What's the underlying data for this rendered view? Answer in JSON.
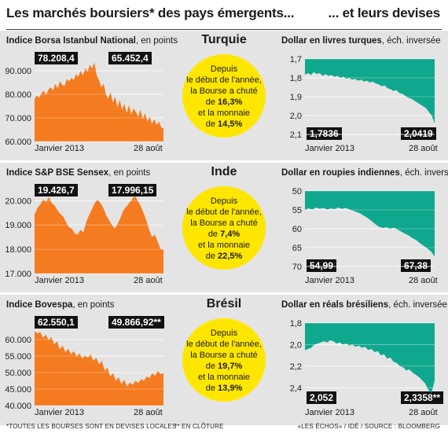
{
  "header": {
    "left_title": "Les marchés boursiers* des pays émergents...",
    "right_title": "... et leurs devises"
  },
  "footer": {
    "note_left": "*TOUTES LES BOURSES SONT EN DEVISES LOCALES",
    "note_mid": "** EN CLÔTURE",
    "source": "«LES ÉCHOS» / IDÉ / SOURCE : BLOOMBERG"
  },
  "colors": {
    "stock": "#f47b20",
    "currency": "#0fa88f",
    "circle": "#ffe600",
    "panel": "#e4e4e4"
  },
  "rows": [
    {
      "country": "Turquie",
      "circle": {
        "l1": "Depuis",
        "l2": "le début de l'année,",
        "l3": "la Bourse a chuté",
        "l4_pre": "de ",
        "stock_pct": "16,3%",
        "l5": "et la monnaie",
        "l6_pre": "de ",
        "fx_pct": "14,5%"
      },
      "stock_title": "Indice Borsa Istanbul National",
      "stock_sub": ", en points",
      "fx_title": "Dollar en livres turques",
      "fx_sub": ", éch. inversée",
      "x_start": "Janvier 2013",
      "x_end": "28 août",
      "stock_start_label": "78.208,4",
      "stock_end_label": "65.452,4",
      "fx_start_label": "1,7836",
      "fx_end_label": "2,0419"
    },
    {
      "country": "Inde",
      "circle": {
        "l1": "Depuis",
        "l2": "le début de l'année,",
        "l3": "la Bourse a chuté",
        "l4_pre": "de ",
        "stock_pct": "7,4%",
        "l5": "et la monnaie",
        "l6_pre": "de ",
        "fx_pct": "22,5%"
      },
      "stock_title": "Indice S&P BSE Sensex",
      "stock_sub": ", en points",
      "fx_title": "Dollar en roupies indiennes",
      "fx_sub": ", éch. inversée",
      "x_start": "Janvier 2013",
      "x_end": "28 août",
      "stock_start_label": "19.426,7",
      "stock_end_label": "17.996,15",
      "fx_start_label": "54,99",
      "fx_end_label": "67,38"
    },
    {
      "country": "Brésil",
      "circle": {
        "l1": "Depuis",
        "l2": "le début de l'année,",
        "l3": "la Bourse a chuté",
        "l4_pre": "de ",
        "stock_pct": "19,7%",
        "l5": "et la monnaie",
        "l6_pre": "de ",
        "fx_pct": "13,9%"
      },
      "stock_title": "Indice Bovespa",
      "stock_sub": ", en points",
      "fx_title": "Dollar en réals brésiliens",
      "fx_sub": ", éch. inversée",
      "x_start": "Janvier 2013",
      "x_end": "28 août",
      "stock_start_label": "62.550,1",
      "stock_end_label": "49.866,92**",
      "fx_start_label": "2,052",
      "fx_end_label": "2,3358**"
    }
  ],
  "chart_data": [
    {
      "type": "area",
      "country": "Turquie",
      "inverted": false,
      "ylim": [
        60000,
        95000
      ],
      "yticks": [
        60000,
        70000,
        80000,
        90000
      ],
      "ytick_labels": [
        "60.000",
        "70.000",
        "80.000",
        "90.000"
      ],
      "values": [
        78208,
        79500,
        78500,
        80500,
        81500,
        79800,
        82000,
        83000,
        81500,
        84500,
        82500,
        85500,
        84000,
        83500,
        86500,
        85500,
        87000,
        86000,
        88500,
        87500,
        90000,
        88000,
        91000,
        89500,
        92500,
        91000,
        93500,
        88000,
        86000,
        83000,
        84500,
        80000,
        78000,
        81000,
        76500,
        79000,
        74500,
        77500,
        73500,
        76000,
        72000,
        75500,
        71500,
        74000,
        72500,
        70500,
        73500,
        69500,
        72000,
        68500,
        70500,
        67500,
        69500,
        67000,
        68500,
        66000,
        65452
      ]
    },
    {
      "type": "area",
      "country": "Turquie",
      "inverted": true,
      "ylim": [
        1.7,
        2.1
      ],
      "yticks": [
        1.7,
        1.8,
        1.9,
        2.0,
        2.1
      ],
      "ytick_labels": [
        "1,7",
        "1,8",
        "1,9",
        "2,0",
        "2,1"
      ],
      "values": [
        1.7836,
        1.775,
        1.785,
        1.77,
        1.78,
        1.775,
        1.79,
        1.78,
        1.79,
        1.785,
        1.795,
        1.79,
        1.8,
        1.795,
        1.805,
        1.8,
        1.81,
        1.805,
        1.815,
        1.81,
        1.82,
        1.815,
        1.825,
        1.82,
        1.83,
        1.835,
        1.845,
        1.84,
        1.855,
        1.86,
        1.87,
        1.865,
        1.88,
        1.885,
        1.895,
        1.905,
        1.91,
        1.92,
        1.93,
        1.94,
        1.95,
        1.96,
        1.98,
        2.0,
        2.0419
      ]
    },
    {
      "type": "area",
      "country": "Inde",
      "inverted": false,
      "ylim": [
        17000,
        20400
      ],
      "yticks": [
        17000,
        18000,
        19000,
        20000
      ],
      "ytick_labels": [
        "17.000",
        "18.000",
        "19.000",
        "20.000"
      ],
      "values": [
        19427,
        19700,
        19850,
        20050,
        19950,
        20150,
        19900,
        19800,
        19600,
        19450,
        19350,
        19100,
        18900,
        18850,
        18650,
        18600,
        18800,
        18700,
        19100,
        19400,
        19650,
        19900,
        20050,
        19900,
        19700,
        19400,
        19200,
        19000,
        18850,
        19050,
        19300,
        19600,
        19750,
        19900,
        20050,
        20200,
        20000,
        19800,
        19500,
        19200,
        18800,
        18500,
        18600,
        18300,
        18000,
        17996
      ]
    },
    {
      "type": "area",
      "country": "Inde",
      "inverted": true,
      "ylim": [
        50,
        70
      ],
      "yticks": [
        50,
        55,
        60,
        65,
        70
      ],
      "ytick_labels": [
        "50",
        "55",
        "60",
        "65",
        "70"
      ],
      "values": [
        54.99,
        54.6,
        54.9,
        54.4,
        54.7,
        54.5,
        54.9,
        54.6,
        54.8,
        54.4,
        54.7,
        54.5,
        54.9,
        55.2,
        55.6,
        56.0,
        56.6,
        57.2,
        58.0,
        58.8,
        59.5,
        59.8,
        59.6,
        60.0,
        59.7,
        60.2,
        60.8,
        61.3,
        61.8,
        62.5,
        63.0,
        63.8,
        64.5,
        65.2,
        66.0,
        67.38
      ]
    },
    {
      "type": "area",
      "country": "Brésil",
      "inverted": false,
      "ylim": [
        40000,
        65000
      ],
      "yticks": [
        40000,
        45000,
        50000,
        55000,
        60000
      ],
      "ytick_labels": [
        "40.000",
        "45.000",
        "50.000",
        "55.000",
        "60.000"
      ],
      "values": [
        62550,
        61800,
        62300,
        60500,
        61500,
        59800,
        60800,
        58500,
        59500,
        57000,
        58200,
        56200,
        57200,
        55500,
        56500,
        54800,
        55800,
        54300,
        55200,
        54500,
        55500,
        53500,
        54500,
        52500,
        53500,
        50500,
        51500,
        48800,
        49800,
        47500,
        48500,
        46500,
        47800,
        45800,
        47000,
        46300,
        47500,
        46800,
        48000,
        47500,
        48800,
        48300,
        49800,
        49000,
        50500,
        49500,
        49867
      ]
    },
    {
      "type": "area",
      "country": "Brésil",
      "inverted": true,
      "ylim": [
        1.8,
        2.5
      ],
      "yticks": [
        1.8,
        2.0,
        2.2,
        2.4
      ],
      "ytick_labels": [
        "1,8",
        "2,0",
        "2,2",
        "2,4"
      ],
      "values": [
        2.052,
        2.04,
        2.03,
        2.0,
        1.99,
        1.98,
        1.97,
        1.98,
        1.96,
        1.97,
        1.99,
        1.98,
        2.0,
        1.99,
        2.01,
        2.0,
        2.02,
        2.01,
        2.03,
        2.02,
        2.05,
        2.04,
        2.07,
        2.06,
        2.1,
        2.09,
        2.13,
        2.12,
        2.16,
        2.17,
        2.2,
        2.21,
        2.24,
        2.23,
        2.26,
        2.28,
        2.3,
        2.33,
        2.36,
        2.42,
        2.45,
        2.3358
      ]
    }
  ]
}
